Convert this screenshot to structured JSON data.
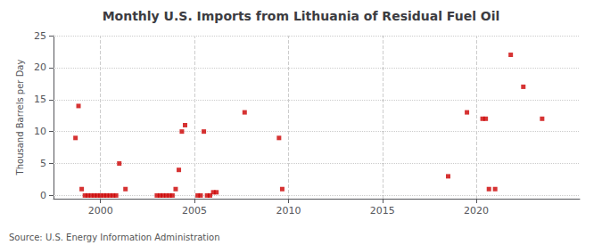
{
  "chart_data": {
    "type": "scatter",
    "title": "Monthly U.S. Imports from Lithuania of Residual Fuel Oil",
    "ylabel": "Thousand Barrels per Day",
    "annotations": [
      "Source: U.S. Energy Information Administration"
    ],
    "color": "#cc0000",
    "marker": "square",
    "grid": true,
    "xlim": [
      1997.5,
      2025.5
    ],
    "xticks": [
      2000,
      2005,
      2010,
      2015,
      2020
    ],
    "ylim": [
      -0.5,
      25
    ],
    "yticks": [
      0,
      5,
      10,
      15,
      20,
      25
    ],
    "x": [
      1998.67,
      1998.83,
      1999.0,
      1999.17,
      1999.33,
      1999.5,
      1999.67,
      1999.83,
      2000.0,
      2000.17,
      2000.33,
      2000.5,
      2000.67,
      2000.83,
      2001.0,
      2001.33,
      2003.0,
      2003.17,
      2003.33,
      2003.5,
      2003.67,
      2003.83,
      2004.0,
      2004.17,
      2004.33,
      2004.5,
      2005.17,
      2005.33,
      2005.5,
      2005.67,
      2005.83,
      2006.0,
      2006.17,
      2007.67,
      2009.5,
      2009.67,
      2018.5,
      2019.5,
      2020.33,
      2020.5,
      2020.67,
      2021.0,
      2021.83,
      2022.5,
      2023.5
    ],
    "values": [
      9.0,
      14.0,
      1.0,
      0.0,
      0.0,
      0.0,
      0.0,
      0.0,
      0.0,
      0.0,
      0.0,
      0.0,
      0.0,
      0.0,
      5.0,
      1.0,
      0.0,
      0.0,
      0.0,
      0.0,
      0.0,
      0.0,
      1.0,
      4.0,
      10.0,
      11.0,
      0.0,
      0.0,
      10.0,
      0.0,
      0.0,
      0.5,
      0.5,
      13.0,
      9.0,
      1.0,
      3.0,
      13.0,
      12.0,
      12.0,
      1.0,
      1.0,
      22.0,
      17.0,
      12.0
    ]
  }
}
